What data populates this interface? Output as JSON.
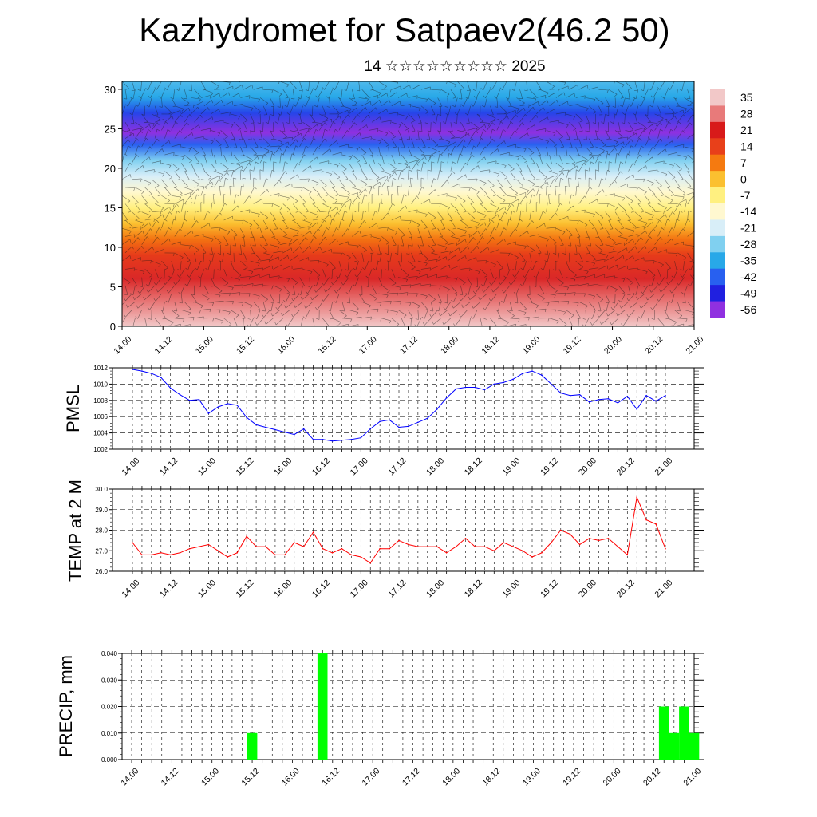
{
  "header": {
    "title": "Kazhydromet for Satpaev2(46.2 50)",
    "subtitle": "14 ☆☆☆☆☆☆☆☆☆ 2025"
  },
  "time_labels": [
    "14.00",
    "14.12",
    "15.00",
    "15.12",
    "16.00",
    "16.12",
    "17.00",
    "17.12",
    "18.00",
    "18.12",
    "19.00",
    "19.12",
    "20.00",
    "20.12",
    "21.00"
  ],
  "chart_data": [
    {
      "type": "heatmap",
      "name": "temperature-wind cross-section",
      "x_tick_labels": [
        "14.00",
        "14.12",
        "15.00",
        "15.12",
        "16.00",
        "16.12",
        "17.00",
        "17.12",
        "18.00",
        "18.12",
        "19.00",
        "19.12",
        "20.00",
        "20.12",
        "21.00"
      ],
      "ylim": [
        0,
        31
      ],
      "y_ticks": [
        0,
        5,
        10,
        15,
        20,
        25,
        30
      ],
      "temperature_profile": {
        "height": [
          0,
          3,
          6,
          9,
          11,
          13,
          15,
          17,
          19,
          21,
          23,
          24.5,
          27,
          29,
          31
        ],
        "value": [
          35,
          28,
          22,
          15,
          8,
          0,
          -7,
          -14,
          -21,
          -28,
          -42,
          -56,
          -45,
          -35,
          -32
        ]
      },
      "colorbar": {
        "labels": [
          "35",
          "28",
          "21",
          "14",
          "7",
          "0",
          "-7",
          "-14",
          "-21",
          "-28",
          "-35",
          "-42",
          "-49",
          "-56"
        ],
        "colors": [
          "#f2c8c8",
          "#e87a7a",
          "#d81a1a",
          "#e8401a",
          "#f57a10",
          "#fbc030",
          "#fff080",
          "#fff8d0",
          "#d8eef8",
          "#80d0f0",
          "#28a8e8",
          "#2860f0",
          "#2020e0",
          "#9030e0"
        ]
      },
      "overlay": "wind barbs"
    },
    {
      "type": "line",
      "ylabel": "PMSL",
      "ylim": [
        1002,
        1012
      ],
      "y_tick_labels": [
        "1002",
        "1004",
        "1006",
        "1008",
        "1010",
        "1012"
      ],
      "x_tick_labels": [
        "14.00",
        "14.12",
        "15.00",
        "15.12",
        "16.00",
        "16.12",
        "17.00",
        "17.12",
        "18.00",
        "18.12",
        "19.00",
        "19.12",
        "20.00",
        "20.12",
        "21.00"
      ],
      "x_hours": [
        0,
        3,
        6,
        9,
        12,
        15,
        18,
        21,
        24,
        27,
        30,
        33,
        36,
        39,
        42,
        45,
        48,
        51,
        54,
        57,
        60,
        63,
        66,
        69,
        72,
        75,
        78,
        81,
        84,
        87,
        90,
        93,
        96,
        99,
        102,
        105,
        108,
        111,
        114,
        117,
        120,
        123,
        126,
        129,
        132,
        135,
        138,
        141,
        144,
        147,
        150,
        153,
        156,
        159,
        162,
        165,
        168
      ],
      "series": [
        {
          "color": "#0000ff",
          "values": [
            1011.8,
            1011.6,
            1011.3,
            1010.8,
            1009.5,
            1008.7,
            1008.0,
            1008.1,
            1006.4,
            1007.2,
            1007.6,
            1007.4,
            1005.9,
            1005.0,
            1004.7,
            1004.4,
            1004.1,
            1003.8,
            1004.5,
            1003.2,
            1003.2,
            1003.0,
            1003.1,
            1003.2,
            1003.4,
            1004.5,
            1005.4,
            1005.6,
            1004.7,
            1004.8,
            1005.3,
            1005.8,
            1006.9,
            1008.3,
            1009.4,
            1009.6,
            1009.6,
            1009.3,
            1010.0,
            1010.2,
            1010.6,
            1011.3,
            1011.6,
            1011.1,
            1010.0,
            1008.9,
            1008.6,
            1008.7,
            1007.8,
            1008.1,
            1008.2,
            1007.7,
            1008.5,
            1006.9,
            1008.6,
            1007.9,
            1008.6
          ]
        }
      ]
    },
    {
      "type": "line",
      "ylabel": "TEMP at 2 M",
      "ylim": [
        26,
        30
      ],
      "y_tick_labels": [
        "26.0",
        "27.0",
        "28.0",
        "29.0",
        "30.0"
      ],
      "x_tick_labels": [
        "14.00",
        "14.12",
        "15.00",
        "15.12",
        "16.00",
        "16.12",
        "17.00",
        "17.12",
        "18.00",
        "18.12",
        "19.00",
        "19.12",
        "20.00",
        "20.12",
        "21.00"
      ],
      "x_hours": [
        0,
        3,
        6,
        9,
        12,
        15,
        18,
        21,
        24,
        27,
        30,
        33,
        36,
        39,
        42,
        45,
        48,
        51,
        54,
        57,
        60,
        63,
        66,
        69,
        72,
        75,
        78,
        81,
        84,
        87,
        90,
        93,
        96,
        99,
        102,
        105,
        108,
        111,
        114,
        117,
        120,
        123,
        126,
        129,
        132,
        135,
        138,
        141,
        144,
        147,
        150,
        153,
        156,
        159,
        162,
        165,
        168
      ],
      "series": [
        {
          "color": "#ff0000",
          "values": [
            27.4,
            26.8,
            26.8,
            26.9,
            26.8,
            26.9,
            27.1,
            27.2,
            27.3,
            27.0,
            26.7,
            26.9,
            27.7,
            27.2,
            27.2,
            26.8,
            26.8,
            27.4,
            27.2,
            27.9,
            27.1,
            26.9,
            27.1,
            26.8,
            26.7,
            26.4,
            27.1,
            27.1,
            27.5,
            27.3,
            27.2,
            27.2,
            27.2,
            26.9,
            27.2,
            27.6,
            27.2,
            27.2,
            27.0,
            27.4,
            27.2,
            27.0,
            26.7,
            26.9,
            27.4,
            28.0,
            27.8,
            27.3,
            27.6,
            27.5,
            27.6,
            27.2,
            26.8,
            29.6,
            28.5,
            28.3,
            27.1
          ]
        }
      ]
    },
    {
      "type": "bar",
      "ylabel": "PRECIP, mm",
      "ylim": [
        0,
        0.04
      ],
      "y_tick_labels": [
        "0.000",
        "0.010",
        "0.020",
        "0.030",
        "0.040"
      ],
      "x_tick_labels": [
        "14.00",
        "14.12",
        "15.00",
        "15.12",
        "16.00",
        "16.12",
        "17.00",
        "17.12",
        "18.00",
        "18.12",
        "19.00",
        "19.12",
        "20.00",
        "20.12",
        "21.00"
      ],
      "bar_color": "#00ff00",
      "bars": [
        {
          "hour": 36,
          "value": 0.01
        },
        {
          "hour": 57,
          "value": 0.04
        },
        {
          "hour": 159,
          "value": 0.02
        },
        {
          "hour": 162,
          "value": 0.01
        },
        {
          "hour": 165,
          "value": 0.02
        },
        {
          "hour": 168,
          "value": 0.01
        }
      ]
    }
  ]
}
